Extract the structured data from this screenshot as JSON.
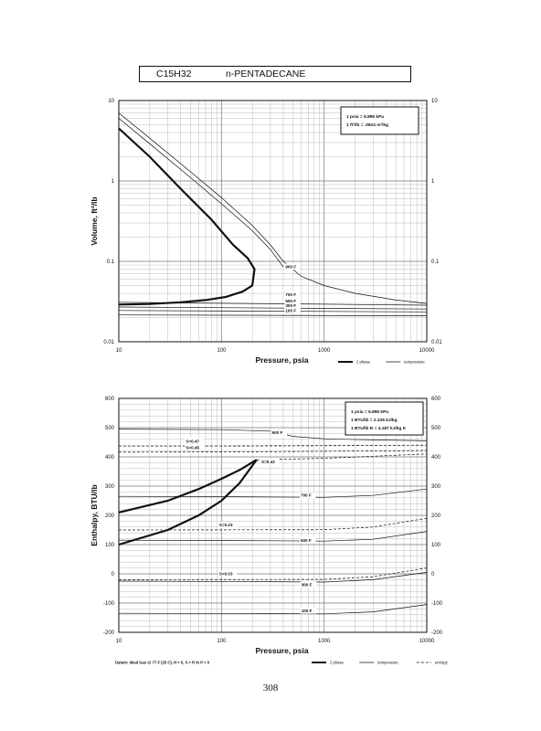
{
  "header": {
    "formula": "C15H32",
    "name": "n-PENTADECANE"
  },
  "page_number": "308",
  "chart_data": [
    {
      "type": "line",
      "title": "",
      "xlabel": "Pressure, psia",
      "ylabel": "Volume, ft^3/lb",
      "x_scale": "log",
      "y_scale": "log",
      "xlim": [
        10,
        10000
      ],
      "ylim": [
        0.01,
        10
      ],
      "x_ticks": [
        "10",
        "100",
        "1000",
        "10000"
      ],
      "y_ticks": [
        "10",
        "1",
        "0.1",
        "0.01"
      ],
      "y_ticks_right": [
        "10",
        "1",
        "0.1",
        "0.01"
      ],
      "grid": true,
      "conversions": [
        "1 psia = 6.895 kPa",
        "1 ft^3/lb = .0624 m^3/kg"
      ],
      "legend": {
        "placement": "bottom-right",
        "entries": [
          {
            "label": "2 phase",
            "style": "thick"
          },
          {
            "label": "temperature",
            "style": "thin"
          }
        ]
      },
      "series": [
        {
          "name": "2 phase",
          "style": "thick",
          "x": [
            10,
            20,
            40,
            80,
            130,
            180,
            210,
            200,
            160,
            110,
            70,
            40,
            20,
            10
          ],
          "y": [
            4.5,
            2.0,
            0.8,
            0.33,
            0.16,
            0.11,
            0.08,
            0.05,
            0.042,
            0.036,
            0.033,
            0.031,
            0.0295,
            0.029
          ]
        },
        {
          "name": "900 F",
          "style": "thin",
          "x": [
            10,
            20,
            50,
            100,
            200,
            300,
            400,
            600,
            1000,
            2000,
            5000,
            10000
          ],
          "y": [
            7.0,
            3.4,
            1.3,
            0.62,
            0.28,
            0.16,
            0.1,
            0.065,
            0.05,
            0.04,
            0.033,
            0.03
          ]
        },
        {
          "name": "800 F",
          "style": "thin",
          "x": [
            10,
            20,
            50,
            100,
            200,
            300,
            400
          ],
          "y": [
            6.0,
            2.9,
            1.1,
            0.52,
            0.24,
            0.14,
            0.085
          ]
        },
        {
          "name": "700 F",
          "style": "thin",
          "x": [
            10,
            10000
          ],
          "y": [
            0.031,
            0.0285
          ]
        },
        {
          "name": "500 F",
          "style": "thin",
          "x": [
            10,
            10000
          ],
          "y": [
            0.027,
            0.0255
          ]
        },
        {
          "name": "300 F",
          "style": "thin",
          "x": [
            10,
            10000
          ],
          "y": [
            0.0245,
            0.0235
          ]
        },
        {
          "name": "100 F",
          "style": "thin",
          "x": [
            10,
            10000
          ],
          "y": [
            0.0215,
            0.021
          ]
        }
      ],
      "annotations": [
        {
          "text": "900 F",
          "x": 420,
          "y": 0.082
        },
        {
          "text": "700 F",
          "x": 420,
          "y": 0.037
        },
        {
          "text": "500 F",
          "x": 420,
          "y": 0.031
        },
        {
          "text": "300 F",
          "x": 420,
          "y": 0.027
        },
        {
          "text": "100 F",
          "x": 420,
          "y": 0.0235
        }
      ]
    },
    {
      "type": "line",
      "title": "",
      "xlabel": "Pressure, psia",
      "ylabel": "Enthalpy, BTU/lb",
      "x_scale": "log",
      "xlim": [
        10,
        10000
      ],
      "ylim": [
        -200,
        600
      ],
      "x_ticks": [
        "10",
        "100",
        "1000",
        "10000"
      ],
      "y_ticks": [
        "600",
        "500",
        "400",
        "300",
        "200",
        "100",
        "0",
        "-100",
        "-200"
      ],
      "y_ticks_right": [
        "600",
        "500",
        "400",
        "300",
        "200",
        "100",
        "0",
        "-100",
        "-200"
      ],
      "grid": true,
      "conversions": [
        "1 psia = 6.895 kPa",
        "1 BTU/lb = 2.326 kJ/kg",
        "1 BTU/lb R = 4.187 kJ/kg K"
      ],
      "footnote": "Datum: Ideal Gas @ 77 F (25 C), H = 0, S = R ln P = 0",
      "legend": {
        "placement": "bottom-right",
        "entries": [
          {
            "label": "2 phase",
            "style": "thick"
          },
          {
            "label": "temperature",
            "style": "thin"
          },
          {
            "label": "entropy",
            "style": "dashed"
          }
        ]
      },
      "series": [
        {
          "name": "2 phase (vapor)",
          "style": "thick",
          "x": [
            10,
            30,
            60,
            100,
            150,
            220
          ],
          "y": [
            210,
            250,
            290,
            325,
            355,
            390
          ]
        },
        {
          "name": "2 phase (liquid)",
          "style": "thick",
          "x": [
            10,
            30,
            60,
            100,
            150,
            220
          ],
          "y": [
            100,
            150,
            200,
            250,
            310,
            390
          ]
        },
        {
          "name": "900 F",
          "style": "thin",
          "x": [
            10,
            100,
            300,
            500,
            1000,
            3000,
            10000
          ],
          "y": [
            495,
            493,
            488,
            470,
            462,
            458,
            455
          ]
        },
        {
          "name": "700 F",
          "style": "thin",
          "x": [
            10,
            300,
            1000,
            3000,
            10000
          ],
          "y": [
            265,
            263,
            262,
            268,
            290
          ]
        },
        {
          "name": "500 F",
          "style": "thin",
          "x": [
            10,
            300,
            1000,
            3000,
            10000
          ],
          "y": [
            115,
            113,
            112,
            118,
            145
          ]
        },
        {
          "name": "300 F",
          "style": "thin",
          "x": [
            10,
            300,
            1000,
            3000,
            10000
          ],
          "y": [
            -25,
            -27,
            -28,
            -20,
            5
          ]
        },
        {
          "name": "100 F",
          "style": "thin",
          "x": [
            10,
            300,
            1000,
            3000,
            10000
          ],
          "y": [
            -135,
            -136,
            -137,
            -130,
            -105
          ]
        },
        {
          "name": "S=0.47",
          "style": "dashed",
          "x": [
            10,
            100,
            1000,
            10000
          ],
          "y": [
            437,
            437,
            438,
            440
          ]
        },
        {
          "name": "S=0.45",
          "style": "dashed",
          "x": [
            10,
            100,
            1000,
            10000
          ],
          "y": [
            416,
            417,
            419,
            422
          ]
        },
        {
          "name": "S=0.43",
          "style": "dashed",
          "x": [
            220,
            1000,
            10000
          ],
          "y": [
            390,
            395,
            410
          ]
        },
        {
          "name": "S=0.23",
          "style": "dashed",
          "x": [
            10,
            1000,
            3000,
            10000
          ],
          "y": [
            150,
            151,
            160,
            190
          ]
        },
        {
          "name": "S=0.03",
          "style": "dashed",
          "x": [
            10,
            1000,
            3000,
            10000
          ],
          "y": [
            -20,
            -19,
            -10,
            20
          ]
        }
      ],
      "annotations": [
        {
          "text": "900 F",
          "x": 310,
          "y": 478
        },
        {
          "text": "S=0.47",
          "x": 45,
          "y": 449
        },
        {
          "text": "S=0.45",
          "x": 45,
          "y": 426
        },
        {
          "text": "S=0.43",
          "x": 245,
          "y": 378
        },
        {
          "text": "700 F",
          "x": 590,
          "y": 264
        },
        {
          "text": "S=0.23",
          "x": 95,
          "y": 162
        },
        {
          "text": "500 F",
          "x": 590,
          "y": 110
        },
        {
          "text": "S=0.03",
          "x": 95,
          "y": -5
        },
        {
          "text": "300 F",
          "x": 600,
          "y": -42
        },
        {
          "text": "100 F",
          "x": 600,
          "y": -132
        }
      ]
    }
  ]
}
